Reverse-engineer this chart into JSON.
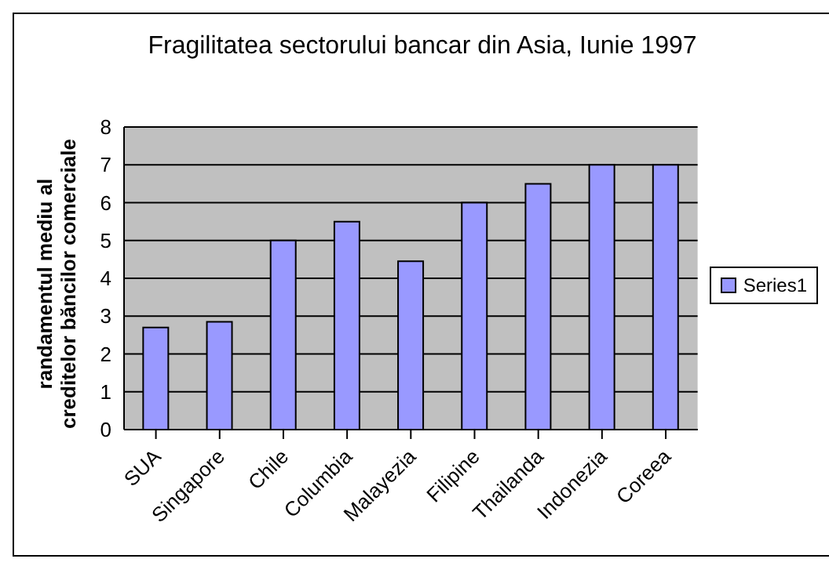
{
  "chart_data": {
    "type": "bar",
    "title": "Fragilitatea sectorului bancar din Asia, Iunie 1997",
    "ylabel": "randamentul mediu al creditelor băncilor comerciale",
    "categories": [
      "SUA",
      "Singapore",
      "Chile",
      "Columbia",
      "Malayezia",
      "Filipine",
      "Thailanda",
      "Indonezia",
      "Coreea"
    ],
    "series": [
      {
        "name": "Series1",
        "color": "#9999ff",
        "values": [
          2.7,
          2.85,
          5,
          5.5,
          4.45,
          6,
          6.5,
          7,
          7
        ]
      }
    ],
    "ylim": [
      0,
      8
    ],
    "yticks": [
      0,
      1,
      2,
      3,
      4,
      5,
      6,
      7,
      8
    ],
    "grid": "y",
    "legend": "right"
  }
}
